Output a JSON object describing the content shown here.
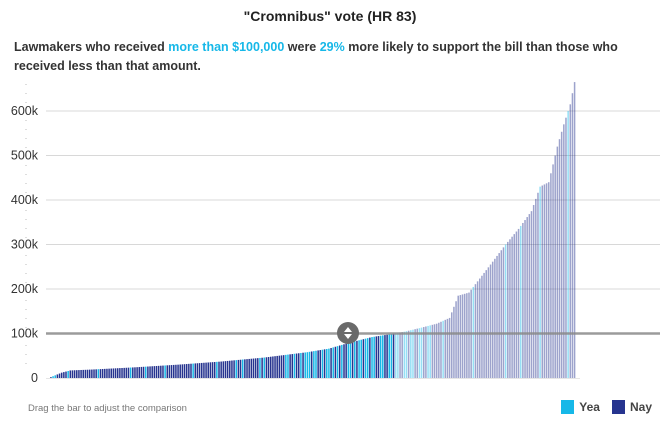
{
  "header": {
    "title": "\"Cromnibus\" vote (HR 83)",
    "subtitle_parts": [
      {
        "text": "Lawmakers who received ",
        "highlight": false
      },
      {
        "text": "more than $100,000",
        "highlight": true
      },
      {
        "text": " were ",
        "highlight": false
      },
      {
        "text": "29%",
        "highlight": true
      },
      {
        "text": " more likely to support the bill than those who received less than that amount.",
        "highlight": false
      }
    ]
  },
  "footer": {
    "instruction": "Drag the bar to adjust the comparison"
  },
  "legend": [
    {
      "label": "Yea",
      "color": "#16b8e8"
    },
    {
      "label": "Nay",
      "color": "#26348f"
    }
  ],
  "threshold": {
    "value": 100000,
    "icon": "up-down-arrows-icon"
  },
  "chart_data": {
    "type": "bar",
    "title": "\"Cromnibus\" vote (HR 83)",
    "xlabel": "",
    "ylabel": "",
    "ylim": [
      0,
      670000
    ],
    "yticks": [
      0,
      100000,
      200000,
      300000,
      400000,
      500000,
      600000
    ],
    "ytick_labels": [
      "0",
      "100k",
      "200k",
      "300k",
      "400k",
      "500k",
      "600k"
    ],
    "grid": true,
    "legend_position": "bottom-right",
    "series_colors": {
      "Yea": "#16b8e8",
      "Nay": "#26348f"
    },
    "pattern": "NNYYNNNNNYNNNNNNNNNNNNNYNNNNNNNNNNNNNNYNNNNNNYNNNNNNNNYNNNNNNNNNNNNYNNNNNNNNNNYNNNNNNNNYNNYNNNNNNNYNYNNNNNNNNNYYNNYNNYNYYYNYYNNYNYYNYNYNYNNYYNYNYYNYYNYYNNYYNNYYNYYNNYYNYYNNYY",
    "profile": [
      [
        0,
        0
      ],
      [
        3,
        6000
      ],
      [
        6,
        12000
      ],
      [
        10,
        17000
      ],
      [
        20,
        19000
      ],
      [
        40,
        24000
      ],
      [
        60,
        30000
      ],
      [
        80,
        37000
      ],
      [
        100,
        46000
      ],
      [
        110,
        52000
      ],
      [
        120,
        58000
      ],
      [
        130,
        66000
      ],
      [
        140,
        80000
      ],
      [
        150,
        92000
      ],
      [
        158,
        98000
      ],
      [
        165,
        104000
      ],
      [
        172,
        112000
      ],
      [
        180,
        122000
      ],
      [
        186,
        135000
      ],
      [
        190,
        185000
      ],
      [
        195,
        192000
      ],
      [
        205,
        255000
      ],
      [
        212,
        300000
      ],
      [
        218,
        335000
      ],
      [
        224,
        375000
      ],
      [
        228,
        430000
      ],
      [
        232,
        440000
      ],
      [
        236,
        520000
      ],
      [
        239,
        570000
      ],
      [
        242,
        615000
      ],
      [
        244,
        665000
      ]
    ]
  }
}
